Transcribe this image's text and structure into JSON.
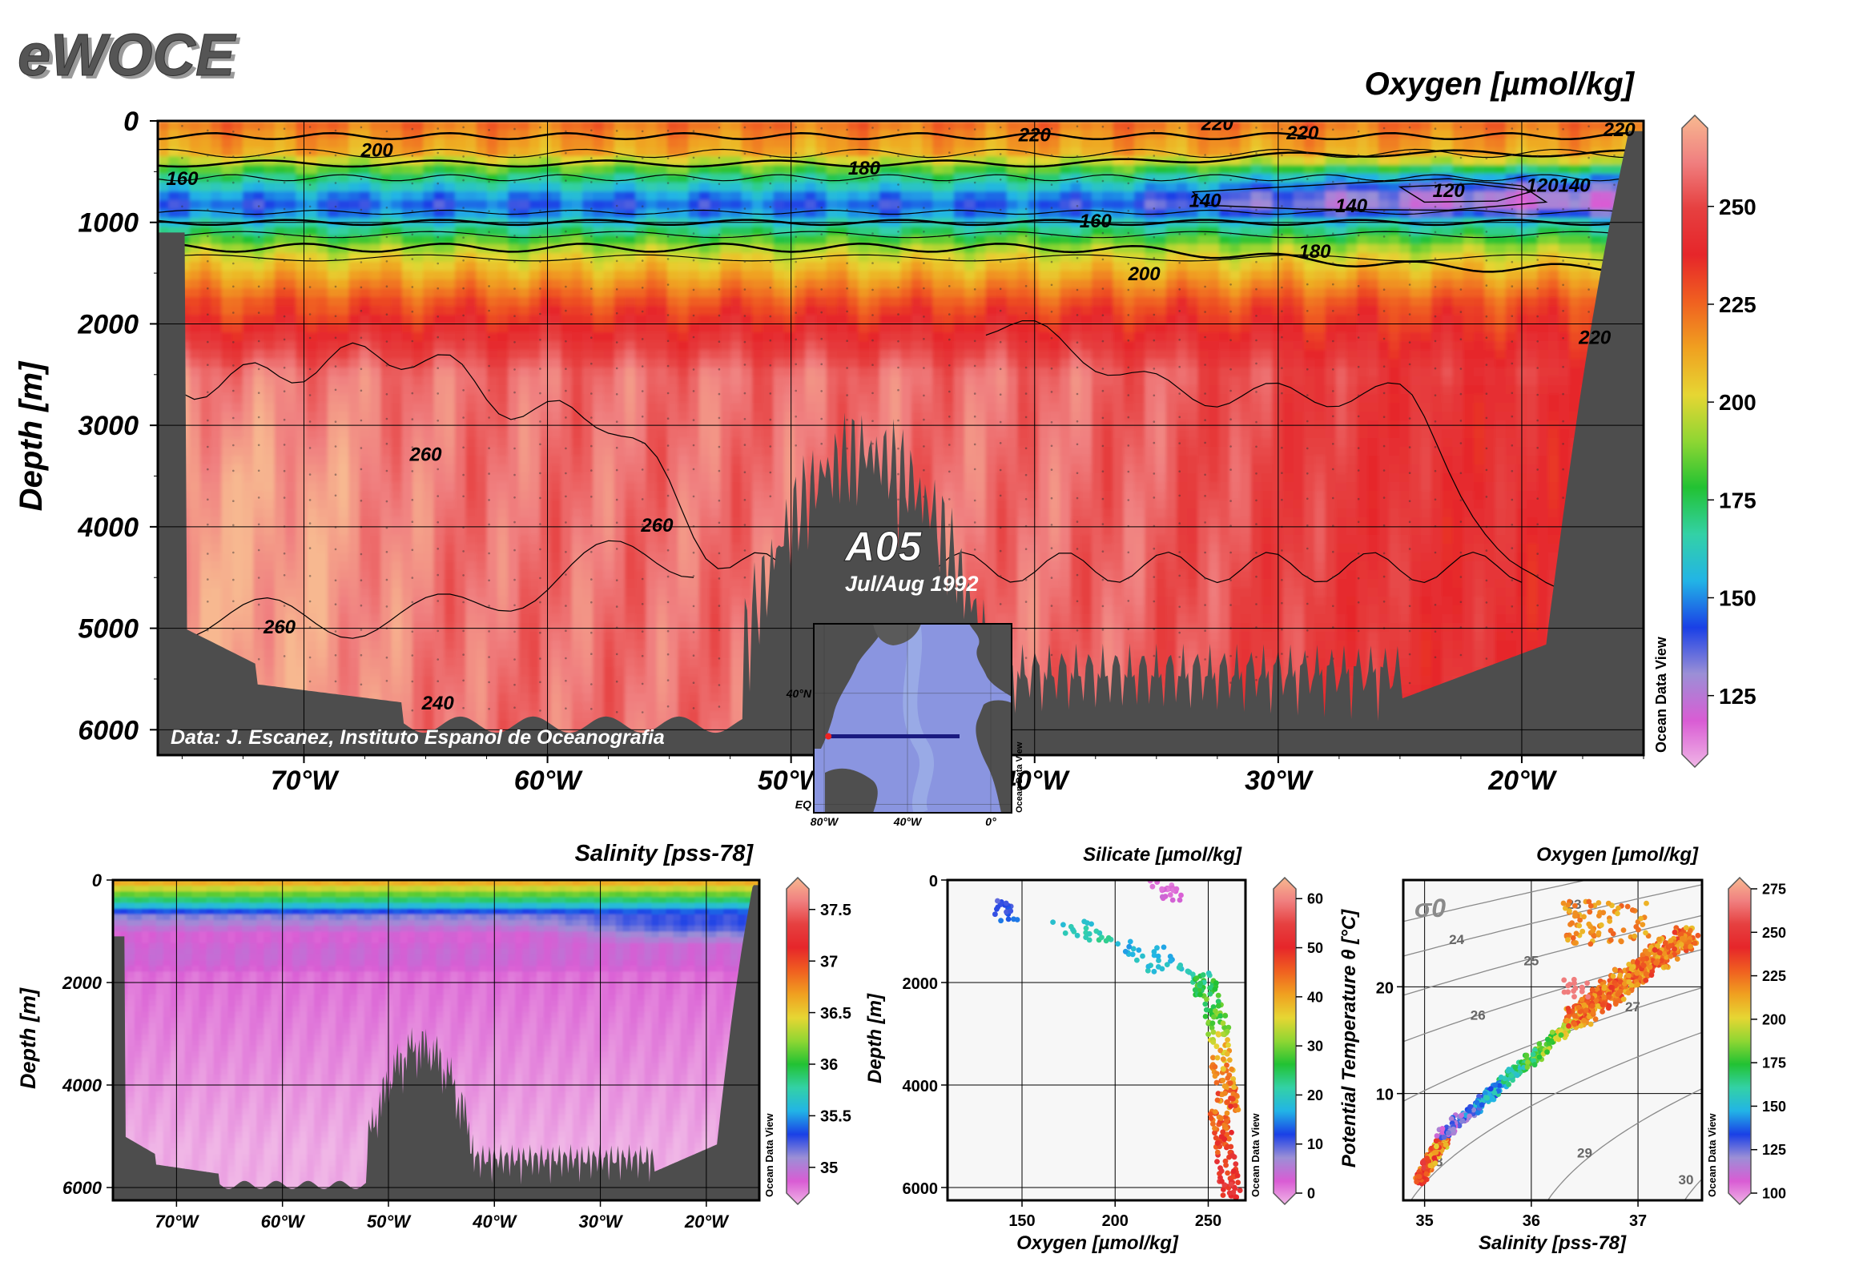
{
  "logo": "eWOCE",
  "colors": {
    "topography": "#4d4d4d",
    "section_line": "#1a1a80",
    "colormap": [
      "#f0b6e6",
      "#d95cd4",
      "#9b8fd6",
      "#1a40e6",
      "#22b4e6",
      "#33d1a6",
      "#22c233",
      "#8fd633",
      "#e6d633",
      "#f0a020",
      "#f06020",
      "#e6262a",
      "#e64040",
      "#f08080",
      "#f7b890"
    ]
  },
  "cruise": {
    "name": "A05",
    "date": "Jul/Aug 1992"
  },
  "credit": "Data: J. Escanez, Instituto Espanol de Oceanografia",
  "odv_label": "Ocean Data View",
  "chart_data": [
    {
      "id": "oxygen_section",
      "type": "heatmap",
      "title": "Oxygen [µmol/kg]",
      "ylabel": "Depth [m]",
      "xlabel": "",
      "x_range": [
        -76,
        -15
      ],
      "y_range": [
        6250,
        0
      ],
      "x_ticks": [
        -70,
        -60,
        -50,
        -40,
        -30,
        -20
      ],
      "x_tick_labels": [
        "70°W",
        "60°W",
        "50°W",
        "40°W",
        "30°W",
        "20°W"
      ],
      "y_ticks": [
        0,
        1000,
        2000,
        3000,
        4000,
        5000,
        6000
      ],
      "y_tick_labels": [
        "0",
        "1000",
        "2000",
        "3000",
        "4000",
        "5000",
        "6000"
      ],
      "colorbar": {
        "range": [
          110,
          270
        ],
        "ticks": [
          125,
          150,
          175,
          200,
          225,
          250
        ],
        "tick_labels": [
          "125",
          "150",
          "175",
          "200",
          "225",
          "250"
        ]
      },
      "contour_labels": [
        {
          "lon": -67,
          "depth": 300,
          "text": "200"
        },
        {
          "lon": -75,
          "depth": 580,
          "text": "160"
        },
        {
          "lon": -47,
          "depth": 480,
          "text": "180"
        },
        {
          "lon": -40,
          "depth": 150,
          "text": "220"
        },
        {
          "lon": -32.5,
          "depth": 40,
          "text": "220"
        },
        {
          "lon": -29,
          "depth": 130,
          "text": "220"
        },
        {
          "lon": -16,
          "depth": 100,
          "text": "220"
        },
        {
          "lon": -33,
          "depth": 800,
          "text": "140"
        },
        {
          "lon": -27,
          "depth": 850,
          "text": "140"
        },
        {
          "lon": -23,
          "depth": 700,
          "text": "120"
        },
        {
          "lon": -18.5,
          "depth": 650,
          "text": "120140"
        },
        {
          "lon": -37.5,
          "depth": 1000,
          "text": "160"
        },
        {
          "lon": -28.5,
          "depth": 1300,
          "text": "180"
        },
        {
          "lon": -35.5,
          "depth": 1520,
          "text": "200"
        },
        {
          "lon": -17,
          "depth": 2150,
          "text": "220"
        },
        {
          "lon": -65,
          "depth": 3300,
          "text": "260"
        },
        {
          "lon": -55.5,
          "depth": 4000,
          "text": "260"
        },
        {
          "lon": -71,
          "depth": 5000,
          "text": "260"
        },
        {
          "lon": -64.5,
          "depth": 5750,
          "text": "240"
        }
      ]
    },
    {
      "id": "salinity_section",
      "type": "heatmap",
      "title": "Salinity [pss-78]",
      "ylabel": "Depth [m]",
      "xlabel": "",
      "x_range": [
        -76,
        -15
      ],
      "y_range": [
        6250,
        0
      ],
      "x_ticks": [
        -70,
        -60,
        -50,
        -40,
        -30,
        -20
      ],
      "x_tick_labels": [
        "70°W",
        "60°W",
        "50°W",
        "40°W",
        "30°W",
        "20°W"
      ],
      "y_ticks": [
        0,
        2000,
        4000,
        6000
      ],
      "y_tick_labels": [
        "0",
        "2000",
        "4000",
        "6000"
      ],
      "colorbar": {
        "range": [
          34.75,
          37.7
        ],
        "ticks": [
          35,
          35.5,
          36,
          36.5,
          37,
          37.5
        ],
        "tick_labels": [
          "35",
          "35.5",
          "36",
          "36.5",
          "37",
          "37.5"
        ]
      }
    },
    {
      "id": "silicate_profile",
      "type": "scatter",
      "title": "Silicate [µmol/kg]",
      "xlabel": "Oxygen [µmol/kg]",
      "ylabel": "Depth [m]",
      "x_range": [
        110,
        270
      ],
      "y_range": [
        6250,
        0
      ],
      "x_ticks": [
        150,
        200,
        250
      ],
      "x_tick_labels": [
        "150",
        "200",
        "250"
      ],
      "y_ticks": [
        0,
        2000,
        4000,
        6000
      ],
      "y_tick_labels": [
        "0",
        "2000",
        "4000",
        "6000"
      ],
      "colorbar": {
        "range": [
          0,
          62
        ],
        "ticks": [
          0,
          10,
          20,
          30,
          40,
          50,
          60
        ],
        "tick_labels": [
          "0",
          "10",
          "20",
          "30",
          "40",
          "50",
          "60"
        ]
      },
      "series": [
        {
          "oxygen": [
            215,
            240
          ],
          "depth_range": [
            0,
            400
          ],
          "silicate": [
            2,
            6
          ]
        },
        {
          "oxygen": [
            130,
            150
          ],
          "depth_range": [
            400,
            800
          ],
          "silicate": [
            10,
            16
          ]
        },
        {
          "oxygen": [
            165,
            200
          ],
          "depth_range": [
            800,
            1200
          ],
          "silicate": [
            18,
            24
          ]
        },
        {
          "oxygen": [
            200,
            240
          ],
          "depth_range": [
            1200,
            1800
          ],
          "silicate": [
            15,
            22
          ]
        },
        {
          "oxygen": [
            240,
            262
          ],
          "depth_range": [
            1800,
            3000
          ],
          "silicate": [
            20,
            35
          ]
        },
        {
          "oxygen": [
            248,
            268
          ],
          "depth_range": [
            3000,
            4500
          ],
          "silicate": [
            30,
            50
          ]
        },
        {
          "oxygen": [
            250,
            268
          ],
          "depth_range": [
            4500,
            6200
          ],
          "silicate": [
            40,
            55
          ]
        }
      ]
    },
    {
      "id": "ts_diagram",
      "type": "scatter",
      "title": "Oxygen [µmol/kg]",
      "xlabel": "Salinity [pss-78]",
      "ylabel": "Potential Temperature θ [°C]",
      "x_range": [
        34.8,
        37.6
      ],
      "y_range": [
        0,
        30
      ],
      "x_ticks": [
        35,
        36,
        37
      ],
      "x_tick_labels": [
        "35",
        "36",
        "37"
      ],
      "y_ticks": [
        10,
        20
      ],
      "y_tick_labels": [
        "10",
        "20"
      ],
      "sigma_label": "σ0",
      "isopycnals": [
        {
          "value": 23,
          "text": "23"
        },
        {
          "value": 24,
          "text": "24"
        },
        {
          "value": 25,
          "text": "25"
        },
        {
          "value": 26,
          "text": "26"
        },
        {
          "value": 27,
          "text": "27"
        },
        {
          "value": 28,
          "text": "28"
        },
        {
          "value": 29,
          "text": "29"
        },
        {
          "value": 30,
          "text": "30"
        }
      ],
      "colorbar": {
        "range": [
          100,
          275
        ],
        "ticks": [
          100,
          125,
          150,
          175,
          200,
          225,
          250,
          275
        ],
        "tick_labels": [
          "100",
          "125",
          "150",
          "175",
          "200",
          "225",
          "250",
          "275"
        ]
      }
    },
    {
      "id": "inset_map",
      "type": "map",
      "x_range": [
        -85,
        10
      ],
      "y_range": [
        -3,
        65
      ],
      "x_ticks": [
        -80,
        -40,
        0
      ],
      "x_tick_labels": [
        "80°W",
        "40°W",
        "0°"
      ],
      "y_ticks": [
        0,
        40
      ],
      "y_tick_labels": [
        "EQ",
        "40°N"
      ],
      "section": {
        "lat": 24.5,
        "lon_range": [
          -78,
          -15
        ]
      }
    }
  ]
}
